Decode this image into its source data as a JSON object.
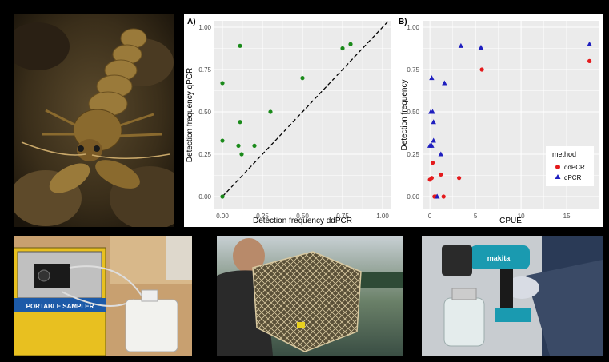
{
  "chart_data": [
    {
      "type": "scatter",
      "panel_label": "A)",
      "xlabel": "Detection frequency ddPCR",
      "ylabel": "Detection frequency qPCR",
      "xlim": [
        0,
        1
      ],
      "ylim": [
        0,
        1
      ],
      "x_ticks": [
        "0.00",
        "0.25",
        "0.50",
        "0.75",
        "1.00"
      ],
      "y_ticks": [
        "0.00",
        "0.25",
        "0.50",
        "0.75",
        "1.00"
      ],
      "grid": true,
      "reference_line": "y = x (dashed)",
      "color": "#1a8a1a",
      "points": [
        {
          "x": 0.0,
          "y": 0.0
        },
        {
          "x": 0.0,
          "y": 0.33
        },
        {
          "x": 0.0,
          "y": 0.67
        },
        {
          "x": 0.1,
          "y": 0.3
        },
        {
          "x": 0.11,
          "y": 0.44
        },
        {
          "x": 0.11,
          "y": 0.89
        },
        {
          "x": 0.12,
          "y": 0.25
        },
        {
          "x": 0.2,
          "y": 0.3
        },
        {
          "x": 0.3,
          "y": 0.5
        },
        {
          "x": 0.5,
          "y": 0.7
        },
        {
          "x": 0.75,
          "y": 0.875
        },
        {
          "x": 0.8,
          "y": 0.9
        }
      ]
    },
    {
      "type": "scatter",
      "panel_label": "B)",
      "xlabel": "CPUE",
      "ylabel": "Detection frequency",
      "xlim": [
        -0.8,
        18.5
      ],
      "ylim": [
        0,
        1
      ],
      "x_ticks": [
        0,
        5,
        10,
        15
      ],
      "y_ticks": [
        "0.00",
        "0.25",
        "0.50",
        "0.75",
        "1.00"
      ],
      "grid": true,
      "legend": {
        "title": "method",
        "position": "right",
        "entries": [
          {
            "label": "ddPCR",
            "color": "#e41a1c",
            "shape": "circle"
          },
          {
            "label": "qPCR",
            "color": "#1f1fbf",
            "shape": "triangle"
          }
        ]
      },
      "series": [
        {
          "name": "ddPCR",
          "points": [
            {
              "x": 0.0,
              "y": 0.1
            },
            {
              "x": 0.2,
              "y": 0.11
            },
            {
              "x": 0.3,
              "y": 0.2
            },
            {
              "x": 0.5,
              "y": 0.0
            },
            {
              "x": 0.7,
              "y": 0.0
            },
            {
              "x": 1.2,
              "y": 0.13
            },
            {
              "x": 1.5,
              "y": 0.0
            },
            {
              "x": 3.2,
              "y": 0.11
            },
            {
              "x": 5.7,
              "y": 0.75
            },
            {
              "x": 17.5,
              "y": 0.8
            }
          ]
        },
        {
          "name": "qPCR",
          "points": [
            {
              "x": 0.0,
              "y": 0.3
            },
            {
              "x": 0.1,
              "y": 0.5
            },
            {
              "x": 0.2,
              "y": 0.3
            },
            {
              "x": 0.2,
              "y": 0.7
            },
            {
              "x": 0.3,
              "y": 0.5
            },
            {
              "x": 0.4,
              "y": 0.33
            },
            {
              "x": 0.4,
              "y": 0.44
            },
            {
              "x": 0.8,
              "y": 0.0
            },
            {
              "x": 1.2,
              "y": 0.25
            },
            {
              "x": 1.6,
              "y": 0.67
            },
            {
              "x": 3.4,
              "y": 0.89
            },
            {
              "x": 5.6,
              "y": 0.88
            },
            {
              "x": 17.5,
              "y": 0.9
            }
          ]
        }
      ]
    }
  ],
  "photos": [
    {
      "id": "crayfish",
      "subject": "crayfish underwater on rocks"
    },
    {
      "id": "sampler",
      "subject": "portable water sampler with pump"
    },
    {
      "id": "trap",
      "subject": "person holding crayfish trap net"
    },
    {
      "id": "drill-filter",
      "subject": "cordless drill powering filtration"
    }
  ],
  "photo_text": {
    "sampler_label": "PORTABLE SAMPLER",
    "drill_brand": "makita"
  }
}
